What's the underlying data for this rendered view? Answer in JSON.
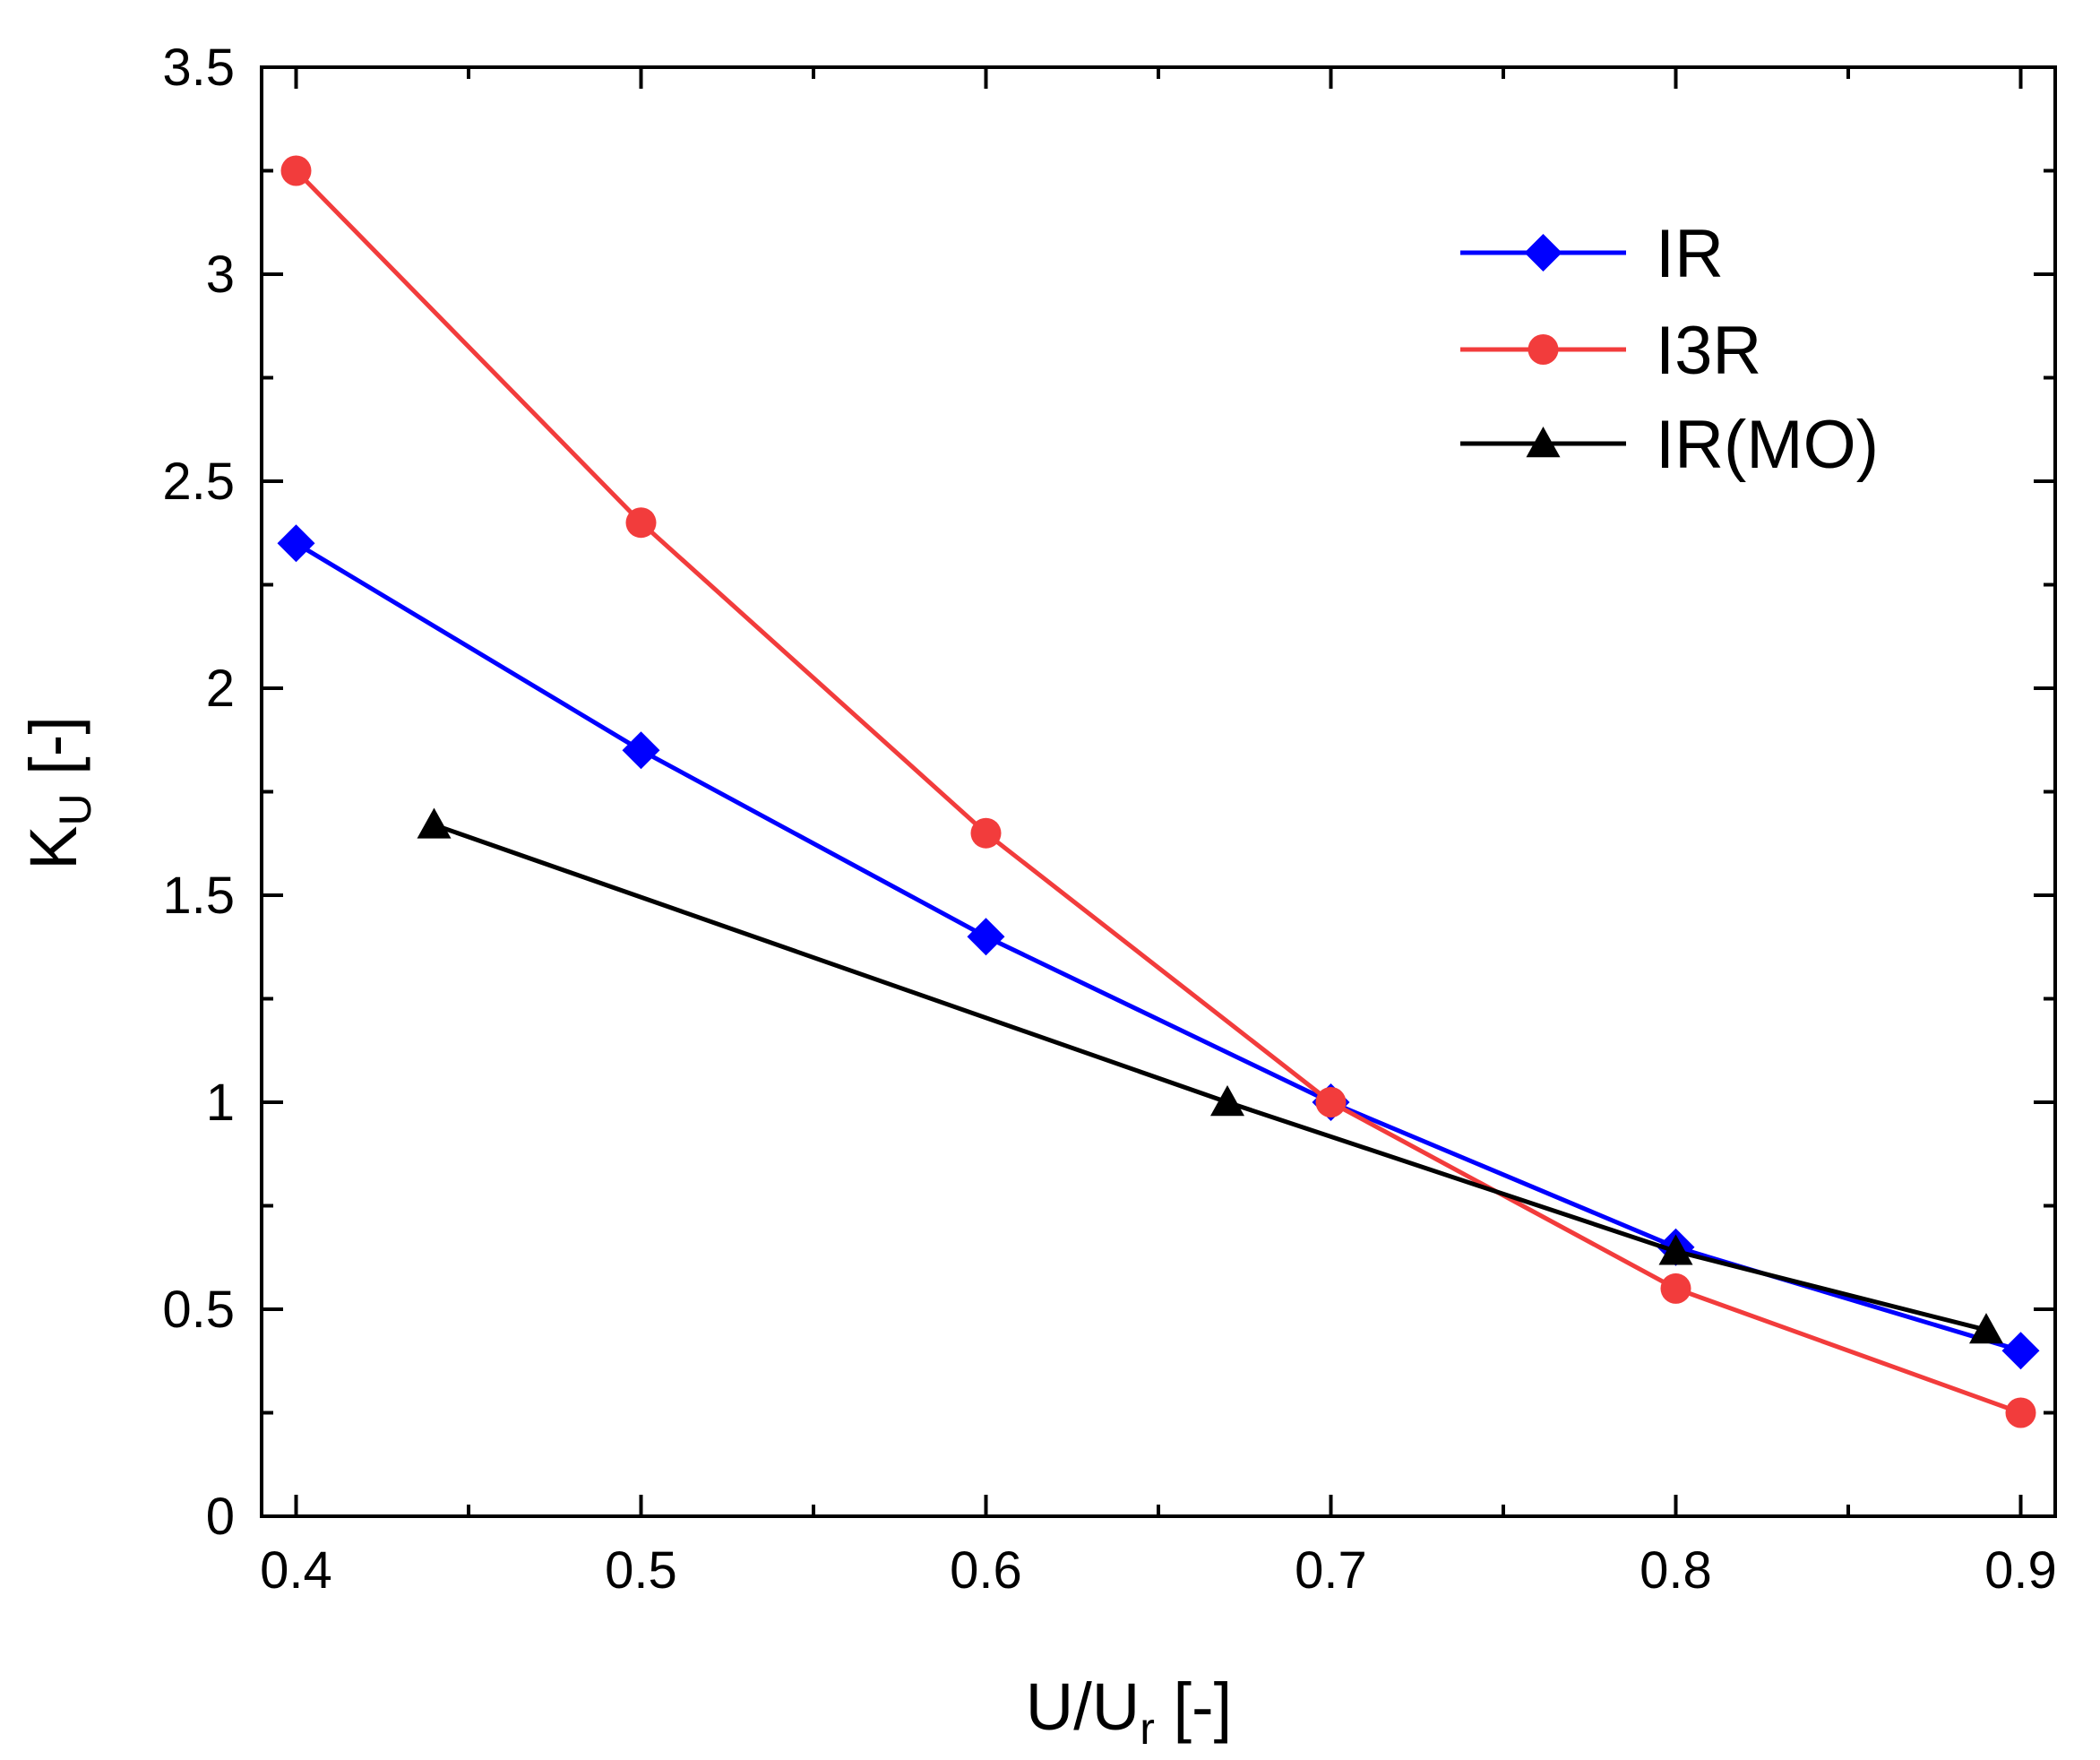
{
  "chart_data": {
    "type": "line",
    "title": "",
    "xlabel": {
      "main": "U/U",
      "sub": "r",
      "unit": " [-]"
    },
    "ylabel": {
      "main": "K",
      "sub": "U",
      "unit": " [-]"
    },
    "xlim": [
      0.39,
      0.91
    ],
    "ylim": [
      0,
      3.5
    ],
    "xticks": [
      {
        "value": 0.4,
        "label": "0.4"
      },
      {
        "value": 0.5,
        "label": "0.5"
      },
      {
        "value": 0.6,
        "label": "0.6"
      },
      {
        "value": 0.7,
        "label": "0.7"
      },
      {
        "value": 0.8,
        "label": "0.8"
      },
      {
        "value": 0.9,
        "label": "0.9"
      }
    ],
    "xminor": [
      0.45,
      0.55,
      0.65,
      0.75,
      0.85
    ],
    "yticks": [
      {
        "value": 0,
        "label": "0"
      },
      {
        "value": 0.5,
        "label": "0.5"
      },
      {
        "value": 1,
        "label": "1"
      },
      {
        "value": 1.5,
        "label": "1.5"
      },
      {
        "value": 2,
        "label": "2"
      },
      {
        "value": 2.5,
        "label": "2.5"
      },
      {
        "value": 3,
        "label": "3"
      },
      {
        "value": 3.5,
        "label": "3.5"
      }
    ],
    "yminor": [
      0.25,
      0.75,
      1.25,
      1.75,
      2.25,
      2.75,
      3.25
    ],
    "grid": false,
    "legend_position": "top-right",
    "series": [
      {
        "name": "IR",
        "color": "#0000ff",
        "marker": "diamond",
        "points": [
          [
            0.4,
            2.35
          ],
          [
            0.5,
            1.85
          ],
          [
            0.6,
            1.4
          ],
          [
            0.7,
            1.0
          ],
          [
            0.8,
            0.65
          ],
          [
            0.9,
            0.4
          ]
        ]
      },
      {
        "name": "I3R",
        "color": "#f23c3c",
        "marker": "circle",
        "points": [
          [
            0.4,
            3.25
          ],
          [
            0.5,
            2.4
          ],
          [
            0.6,
            1.65
          ],
          [
            0.7,
            1.0
          ],
          [
            0.8,
            0.55
          ],
          [
            0.9,
            0.25
          ]
        ]
      },
      {
        "name": "IR(MO)",
        "color": "#000000",
        "marker": "triangle",
        "points": [
          [
            0.44,
            1.67
          ],
          [
            0.67,
            1.0
          ],
          [
            0.8,
            0.64
          ],
          [
            0.89,
            0.45
          ]
        ]
      }
    ]
  }
}
